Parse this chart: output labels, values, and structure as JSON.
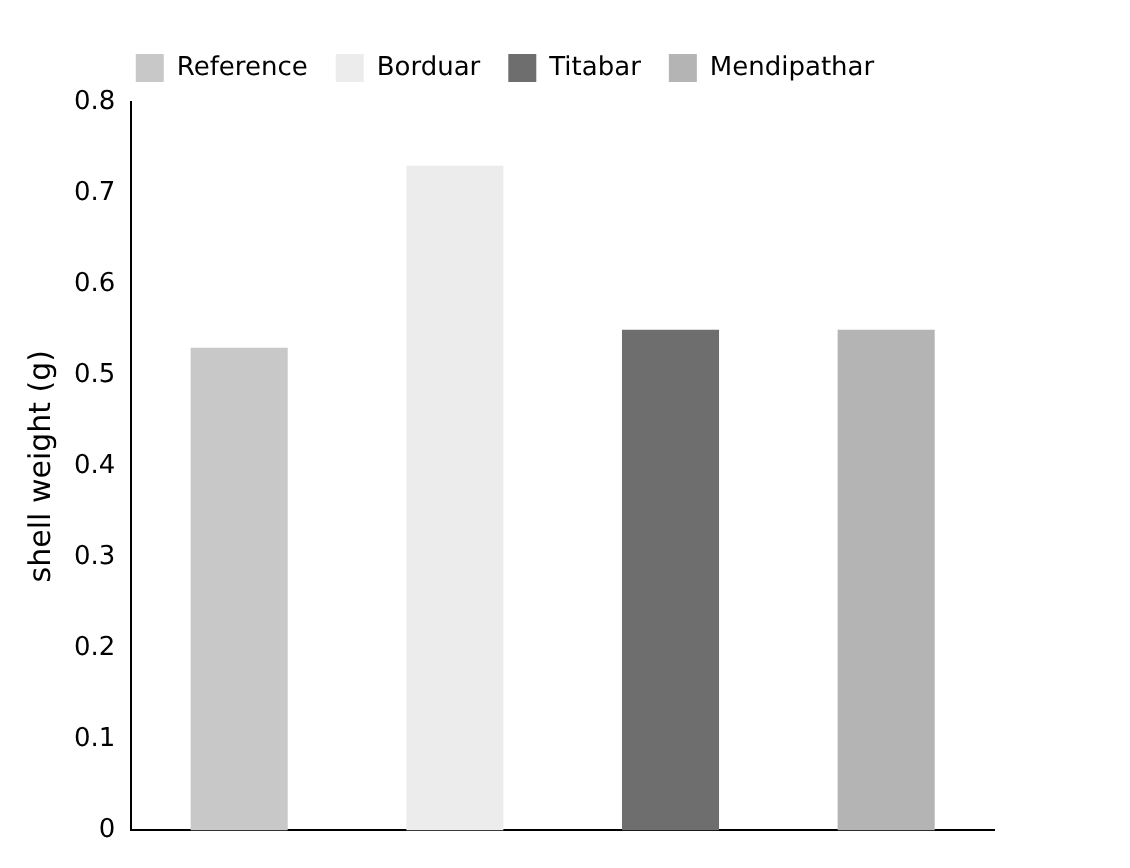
{
  "chart_data": {
    "type": "bar",
    "ylabel": "shell weight (g)",
    "categories": [
      null,
      null,
      null,
      null
    ],
    "series": [
      {
        "name": "Reference",
        "color": "#c8c8c8",
        "values": [
          0.53,
          null,
          null,
          null
        ]
      },
      {
        "name": "Borduar",
        "color": "#ececec",
        "values": [
          null,
          0.73,
          null,
          null
        ]
      },
      {
        "name": "Titabar",
        "color": "#6e6e6e",
        "values": [
          null,
          null,
          0.55,
          null
        ]
      },
      {
        "name": "Mendipathar",
        "color": "#b4b4b4",
        "values": [
          null,
          null,
          null,
          0.55
        ]
      }
    ],
    "ylim": [
      0,
      0.8
    ],
    "yticks": [
      0,
      0.1,
      0.2,
      0.3,
      0.4,
      0.5,
      0.6,
      0.7,
      0.8
    ],
    "grid": false,
    "legend": "top"
  }
}
